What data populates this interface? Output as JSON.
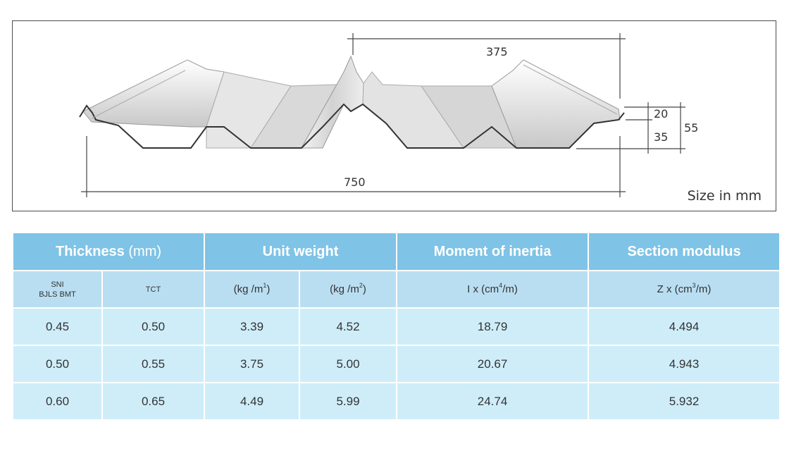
{
  "diagram": {
    "dim_375": "375",
    "dim_750": "750",
    "dim_20": "20",
    "dim_35": "35",
    "dim_55": "55",
    "size_note": "Size in mm"
  },
  "table": {
    "headers": {
      "thickness": "Thickness",
      "thickness_unit": "(mm)",
      "unit_weight": "Unit weight",
      "moment_of_inertia": "Moment of inertia",
      "section_modulus": "Section modulus"
    },
    "subheaders": {
      "sni_line1": "SNI",
      "sni_line2": "BJLS BMT",
      "tct": "TCT",
      "kg_m1_base": "(kg /m",
      "kg_m1_exp": "1",
      "kg_m2_base": "(kg /m",
      "kg_m2_exp": "2",
      "ix_base": "I x (cm",
      "ix_exp": "4",
      "zx_base": "Z x (cm",
      "zx_exp": "3",
      "close_paren": ")",
      "per_m": "/m)"
    },
    "rows": [
      {
        "bmt": "0.45",
        "tct": "0.50",
        "kg_m1": "3.39",
        "kg_m2": "4.52",
        "ix": "18.79",
        "zx": "4.494"
      },
      {
        "bmt": "0.50",
        "tct": "0.55",
        "kg_m1": "3.75",
        "kg_m2": "5.00",
        "ix": "20.67",
        "zx": "4.943"
      },
      {
        "bmt": "0.60",
        "tct": "0.65",
        "kg_m1": "4.49",
        "kg_m2": "5.99",
        "ix": "24.74",
        "zx": "5.932"
      }
    ]
  }
}
